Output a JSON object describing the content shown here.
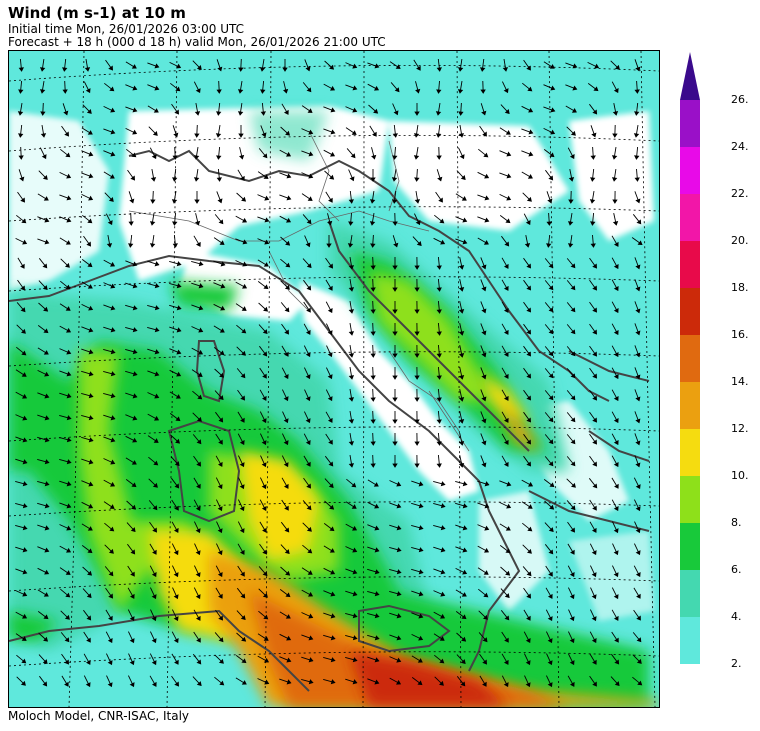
{
  "header": {
    "title": "Wind (m s-1) at 10 m",
    "initial_time": "Initial time  Mon, 26/01/2026  03:00 UTC",
    "forecast": "Forecast  +  18 h  (000 d 18 h)  valid Mon, 26/01/2026 21:00 UTC"
  },
  "footer": {
    "credit": "Moloch Model, CNR-ISAC, Italy"
  },
  "legend": {
    "levels": [
      "2.",
      "4.",
      "6.",
      "8.",
      "10.",
      "12.",
      "14.",
      "16.",
      "18.",
      "20.",
      "22.",
      "24.",
      "26."
    ],
    "colors": [
      "#5fe8dc",
      "#44d8b0",
      "#18c93a",
      "#8ee01a",
      "#f5dc10",
      "#eba010",
      "#e06a10",
      "#cc2a0a",
      "#e80a4a",
      "#f216a8",
      "#e80ae8",
      "#9a10c8",
      "#3a0a8c"
    ]
  },
  "map": {
    "field": "10 m wind speed with direction arrows",
    "region": "Italy and central Mediterranean"
  }
}
